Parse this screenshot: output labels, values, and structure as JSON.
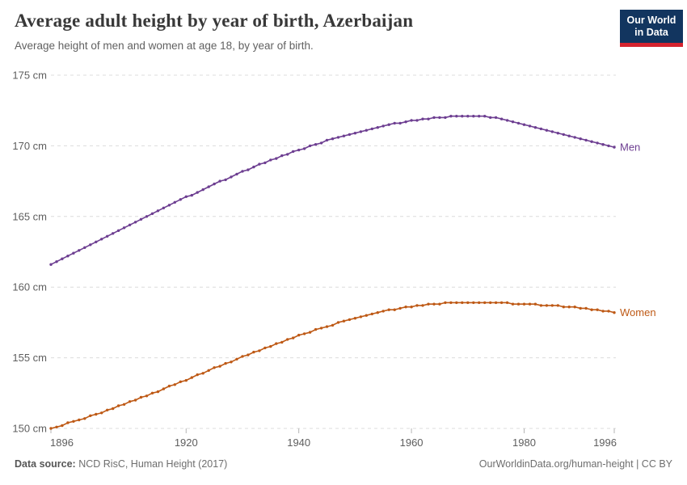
{
  "header": {
    "title": "Average adult height by year of birth, Azerbaijan",
    "subtitle": "Average height of men and women at age 18, by year of birth."
  },
  "logo": {
    "line1": "Our World",
    "line2": "in Data",
    "bg_color": "#12355f",
    "stripe_color": "#d5232e"
  },
  "footer": {
    "source_label": "Data source:",
    "source_value": " NCD RisC, Human Height (2017)",
    "credit": "OurWorldinData.org/human-height | CC BY"
  },
  "chart_data": {
    "type": "line",
    "title": "Average adult height by year of birth, Azerbaijan",
    "subtitle": "Average height of men and women at age 18, by year of birth.",
    "xlabel": "",
    "ylabel": "",
    "x_range": [
      1896,
      1996
    ],
    "y_range": [
      150,
      175
    ],
    "x_step": 1,
    "grid": "horizontal-dashed",
    "legend_position": "line-end-labels",
    "x_ticks": [
      "1896",
      "1920",
      "1940",
      "1960",
      "1980",
      "1996"
    ],
    "x_tick_years": [
      1896,
      1920,
      1940,
      1960,
      1980,
      1996
    ],
    "y_ticks": [
      {
        "value": 150,
        "label": "150 cm"
      },
      {
        "value": 155,
        "label": "155 cm"
      },
      {
        "value": 160,
        "label": "160 cm"
      },
      {
        "value": 165,
        "label": "165 cm"
      },
      {
        "value": 170,
        "label": "170 cm"
      },
      {
        "value": 175,
        "label": "175 cm"
      }
    ],
    "series": [
      {
        "name": "Men",
        "color": "#6d3e91",
        "unit": "cm",
        "values": [
          161.6,
          161.8,
          162.0,
          162.2,
          162.4,
          162.6,
          162.8,
          163.0,
          163.2,
          163.4,
          163.6,
          163.8,
          164.0,
          164.2,
          164.4,
          164.6,
          164.8,
          165.0,
          165.2,
          165.4,
          165.6,
          165.8,
          166.0,
          166.2,
          166.4,
          166.5,
          166.7,
          166.9,
          167.1,
          167.3,
          167.5,
          167.6,
          167.8,
          168.0,
          168.2,
          168.3,
          168.5,
          168.7,
          168.8,
          169.0,
          169.1,
          169.3,
          169.4,
          169.6,
          169.7,
          169.8,
          170.0,
          170.1,
          170.2,
          170.4,
          170.5,
          170.6,
          170.7,
          170.8,
          170.9,
          171.0,
          171.1,
          171.2,
          171.3,
          171.4,
          171.5,
          171.6,
          171.6,
          171.7,
          171.8,
          171.8,
          171.9,
          171.9,
          172.0,
          172.0,
          172.0,
          172.1,
          172.1,
          172.1,
          172.1,
          172.1,
          172.1,
          172.1,
          172.0,
          172.0,
          171.9,
          171.8,
          171.7,
          171.6,
          171.5,
          171.4,
          171.3,
          171.2,
          171.1,
          171.0,
          170.9,
          170.8,
          170.7,
          170.6,
          170.5,
          170.4,
          170.3,
          170.2,
          170.1,
          170.0,
          169.9
        ]
      },
      {
        "name": "Women",
        "color": "#be5915",
        "unit": "cm",
        "values": [
          150.0,
          150.1,
          150.2,
          150.4,
          150.5,
          150.6,
          150.7,
          150.9,
          151.0,
          151.1,
          151.3,
          151.4,
          151.6,
          151.7,
          151.9,
          152.0,
          152.2,
          152.3,
          152.5,
          152.6,
          152.8,
          153.0,
          153.1,
          153.3,
          153.4,
          153.6,
          153.8,
          153.9,
          154.1,
          154.3,
          154.4,
          154.6,
          154.7,
          154.9,
          155.1,
          155.2,
          155.4,
          155.5,
          155.7,
          155.8,
          156.0,
          156.1,
          156.3,
          156.4,
          156.6,
          156.7,
          156.8,
          157.0,
          157.1,
          157.2,
          157.3,
          157.5,
          157.6,
          157.7,
          157.8,
          157.9,
          158.0,
          158.1,
          158.2,
          158.3,
          158.4,
          158.4,
          158.5,
          158.6,
          158.6,
          158.7,
          158.7,
          158.8,
          158.8,
          158.8,
          158.9,
          158.9,
          158.9,
          158.9,
          158.9,
          158.9,
          158.9,
          158.9,
          158.9,
          158.9,
          158.9,
          158.9,
          158.8,
          158.8,
          158.8,
          158.8,
          158.8,
          158.7,
          158.7,
          158.7,
          158.7,
          158.6,
          158.6,
          158.6,
          158.5,
          158.5,
          158.4,
          158.4,
          158.3,
          158.3,
          158.2
        ]
      }
    ]
  }
}
